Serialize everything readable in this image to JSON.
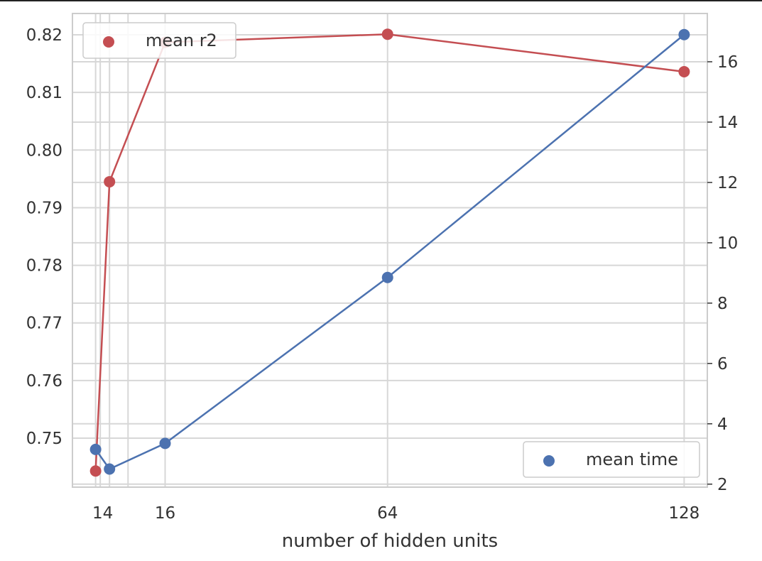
{
  "chart_data": {
    "type": "line",
    "xlabel": "number of hidden units",
    "x_tick_labels": [
      "14",
      "16",
      "64",
      "128"
    ],
    "x": [
      1,
      2,
      4,
      8,
      16,
      64,
      128
    ],
    "xlim": [
      -4,
      133
    ],
    "grid": true,
    "series": [
      {
        "name": "mean r2",
        "axis": "left",
        "color": "#c44e52",
        "x": [
          1,
          4,
          16,
          64,
          128
        ],
        "values": [
          0.7443,
          0.7945,
          0.8187,
          0.8201,
          0.8136
        ]
      },
      {
        "name": "mean time",
        "axis": "right",
        "color": "#4c72b0",
        "x": [
          1,
          4,
          16,
          64,
          128
        ],
        "values": [
          3.15,
          2.5,
          3.35,
          8.85,
          16.9
        ]
      }
    ],
    "y_left": {
      "ticks": [
        0.75,
        0.76,
        0.77,
        0.78,
        0.79,
        0.8,
        0.81,
        0.82
      ],
      "tick_labels": [
        "0.75",
        "0.76",
        "0.77",
        "0.78",
        "0.79",
        "0.80",
        "0.81",
        "0.82"
      ],
      "ylim": [
        0.7415,
        0.8237
      ]
    },
    "y_right": {
      "ticks": [
        2,
        4,
        6,
        8,
        10,
        12,
        14,
        16
      ],
      "tick_labels": [
        "2",
        "4",
        "6",
        "8",
        "10",
        "12",
        "14",
        "16"
      ],
      "ylim": [
        1.9,
        17.6
      ]
    },
    "legends": [
      {
        "label": "mean r2",
        "color": "#c44e52",
        "placement": "upper left"
      },
      {
        "label": "mean time",
        "color": "#4c72b0",
        "placement": "lower right"
      }
    ]
  }
}
